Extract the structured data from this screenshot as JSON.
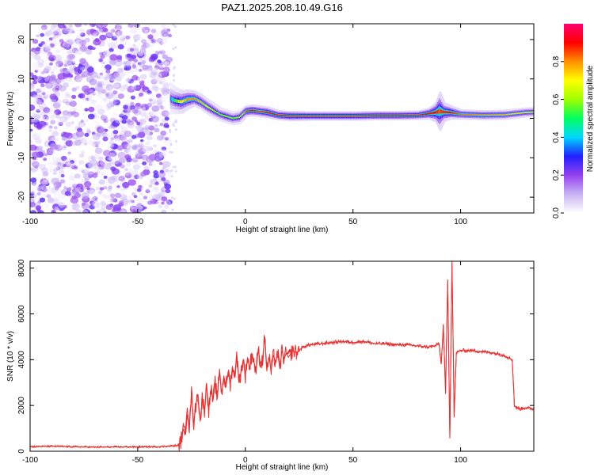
{
  "title": "PAZ1.2025.208.10.49.G16",
  "chart_data": [
    {
      "type": "heatmap",
      "title": "PAZ1.2025.208.10.49.G16",
      "xlabel": "Height of straight line (km)",
      "ylabel": "Frequency (Hz)",
      "xlim": [
        -100,
        134
      ],
      "ylim": [
        -24,
        24
      ],
      "x_ticks": [
        -100,
        -50,
        0,
        50,
        100
      ],
      "y_ticks": [
        -20,
        -10,
        0,
        10,
        20
      ],
      "noise_region_x": [
        -100,
        -35
      ],
      "noise_region_amplitude_range": [
        0.0,
        0.25
      ],
      "ridge": {
        "x": [
          -35,
          -33,
          -30,
          -27,
          -24,
          -21,
          -18,
          -15,
          -12,
          -9,
          -6,
          -3,
          0,
          3,
          6,
          10,
          15,
          20,
          30,
          40,
          50,
          60,
          70,
          80,
          85,
          88,
          90,
          92,
          95,
          100,
          110,
          120,
          130,
          134
        ],
        "frequency": [
          5.0,
          4.5,
          4.2,
          4.8,
          5.0,
          4.2,
          3.0,
          2.0,
          1.0,
          0.5,
          0.0,
          0.3,
          1.8,
          2.0,
          1.8,
          1.5,
          0.8,
          0.6,
          0.6,
          0.6,
          0.6,
          0.7,
          0.7,
          0.8,
          1.2,
          1.5,
          1.8,
          1.6,
          1.5,
          1.0,
          0.8,
          0.9,
          1.5,
          1.6
        ],
        "amplitude": [
          0.35,
          0.5,
          0.7,
          0.8,
          0.8,
          0.75,
          0.7,
          0.6,
          0.55,
          0.6,
          0.55,
          0.6,
          0.85,
          0.9,
          0.85,
          0.9,
          0.92,
          0.95,
          0.95,
          0.95,
          0.95,
          0.95,
          0.95,
          0.93,
          0.9,
          0.9,
          0.85,
          0.88,
          0.9,
          0.82,
          0.8,
          0.75,
          0.7,
          0.7
        ],
        "half_width": [
          4.0,
          3.5,
          3.0,
          2.5,
          2.0,
          2.0,
          2.0,
          2.0,
          1.8,
          1.8,
          1.8,
          1.8,
          1.5,
          1.5,
          1.5,
          1.5,
          1.3,
          1.3,
          1.2,
          1.2,
          1.2,
          1.2,
          1.2,
          1.2,
          1.5,
          2.5,
          5.0,
          2.5,
          1.8,
          1.3,
          1.3,
          1.3,
          1.3,
          1.3
        ]
      },
      "colorbar": {
        "label": "Normalized spectral amplitude",
        "range": [
          0.0,
          1.0
        ],
        "ticks": [
          "0.0",
          "0.2",
          "0.4",
          "0.6",
          "0.8"
        ],
        "tick_values": [
          0.0,
          0.2,
          0.4,
          0.6,
          0.8
        ],
        "colors": [
          "#ffffff",
          "#c8b4f4",
          "#9440ee",
          "#2020ff",
          "#00d8ff",
          "#00ff60",
          "#a0ff00",
          "#ffff00",
          "#ff9000",
          "#ff0000",
          "#ff0070"
        ]
      }
    },
    {
      "type": "line",
      "xlabel": "Height of straight line (km)",
      "ylabel": "SNR (10 * v/v)",
      "xlim": [
        -100,
        134
      ],
      "ylim": [
        0,
        8300
      ],
      "x_ticks": [
        -100,
        -50,
        0,
        50,
        100
      ],
      "y_ticks": [
        0,
        2000,
        4000,
        6000,
        8000
      ],
      "color": "#e83030",
      "series": [
        {
          "x": [
            -100,
            -90,
            -80,
            -70,
            -60,
            -50,
            -40,
            -31,
            -30,
            -29,
            -28,
            -27,
            -26,
            -25,
            -24,
            -23,
            -22,
            -21,
            -20,
            -19,
            -18,
            -17,
            -16,
            -15,
            -14,
            -13,
            -12,
            -11,
            -10,
            -9,
            -8,
            -7,
            -6,
            -5,
            -4,
            -3,
            -2,
            -1,
            0,
            1,
            2,
            3,
            4,
            5,
            6,
            7,
            8,
            9,
            10,
            11,
            12,
            13,
            14,
            15,
            16,
            17,
            18,
            19,
            20,
            22,
            24,
            26,
            28,
            30,
            35,
            40,
            45,
            50,
            55,
            60,
            65,
            70,
            75,
            80,
            85,
            88,
            90,
            91,
            92,
            93,
            94,
            95,
            96,
            97,
            98,
            100,
            105,
            110,
            115,
            120,
            123,
            124,
            125,
            126,
            128,
            130,
            134
          ],
          "y": [
            200,
            220,
            200,
            180,
            190,
            190,
            200,
            250,
            400,
            1000,
            700,
            1900,
            1000,
            2600,
            1200,
            2000,
            2500,
            1300,
            2300,
            1800,
            2900,
            1800,
            2700,
            2200,
            3000,
            2300,
            3600,
            2500,
            3300,
            2800,
            3500,
            2900,
            3700,
            3200,
            4300,
            3000,
            3500,
            4000,
            3300,
            4100,
            3600,
            4300,
            3900,
            3500,
            4500,
            3800,
            4000,
            5000,
            3600,
            4100,
            3500,
            4200,
            3900,
            4300,
            3600,
            4400,
            4000,
            4300,
            4100,
            4400,
            4300,
            4500,
            4600,
            4650,
            4700,
            4750,
            4800,
            4750,
            4800,
            4700,
            4700,
            4650,
            4650,
            4600,
            4550,
            4600,
            4700,
            3800,
            5500,
            2500,
            7500,
            600,
            8300,
            1500,
            4300,
            4400,
            4400,
            4350,
            4300,
            4200,
            4050,
            4000,
            2000,
            1900,
            1850,
            1900,
            1850
          ]
        }
      ]
    }
  ]
}
